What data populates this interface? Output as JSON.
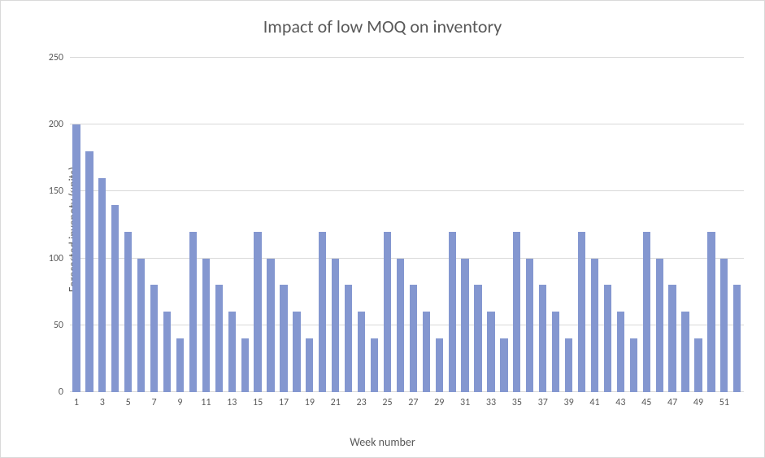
{
  "chart": {
    "type": "bar",
    "title": "Impact of low MOQ on inventory",
    "title_fontsize": 22,
    "title_color": "#595959",
    "xlabel": "Week number",
    "ylabel": "Forecasted invenoty (units)",
    "label_fontsize": 14,
    "label_color": "#595959",
    "tick_fontsize": 12,
    "tick_color": "#595959",
    "background_color": "#ffffff",
    "grid_color": "#d9d9d9",
    "bar_color": "#8497d0",
    "bar_width": 0.58,
    "ylim": [
      0,
      250
    ],
    "ytick_step": 50,
    "yticks": [
      0,
      50,
      100,
      150,
      200,
      250
    ],
    "categories": [
      1,
      2,
      3,
      4,
      5,
      6,
      7,
      8,
      9,
      10,
      11,
      12,
      13,
      14,
      15,
      16,
      17,
      18,
      19,
      20,
      21,
      22,
      23,
      24,
      25,
      26,
      27,
      28,
      29,
      30,
      31,
      32,
      33,
      34,
      35,
      36,
      37,
      38,
      39,
      40,
      41,
      42,
      43,
      44,
      45,
      46,
      47,
      48,
      49,
      50,
      51,
      52
    ],
    "values": [
      200,
      180,
      160,
      140,
      120,
      100,
      80,
      60,
      40,
      120,
      100,
      80,
      60,
      40,
      120,
      100,
      80,
      60,
      40,
      120,
      100,
      80,
      60,
      40,
      120,
      100,
      80,
      60,
      40,
      120,
      100,
      80,
      60,
      40,
      120,
      100,
      80,
      60,
      40,
      120,
      100,
      80,
      60,
      40,
      120,
      100,
      80,
      60,
      40,
      120,
      100,
      80
    ],
    "xtick_labels_shown": [
      1,
      3,
      5,
      7,
      9,
      11,
      13,
      15,
      17,
      19,
      21,
      23,
      25,
      27,
      29,
      31,
      33,
      35,
      37,
      39,
      41,
      43,
      45,
      47,
      49,
      51
    ]
  }
}
